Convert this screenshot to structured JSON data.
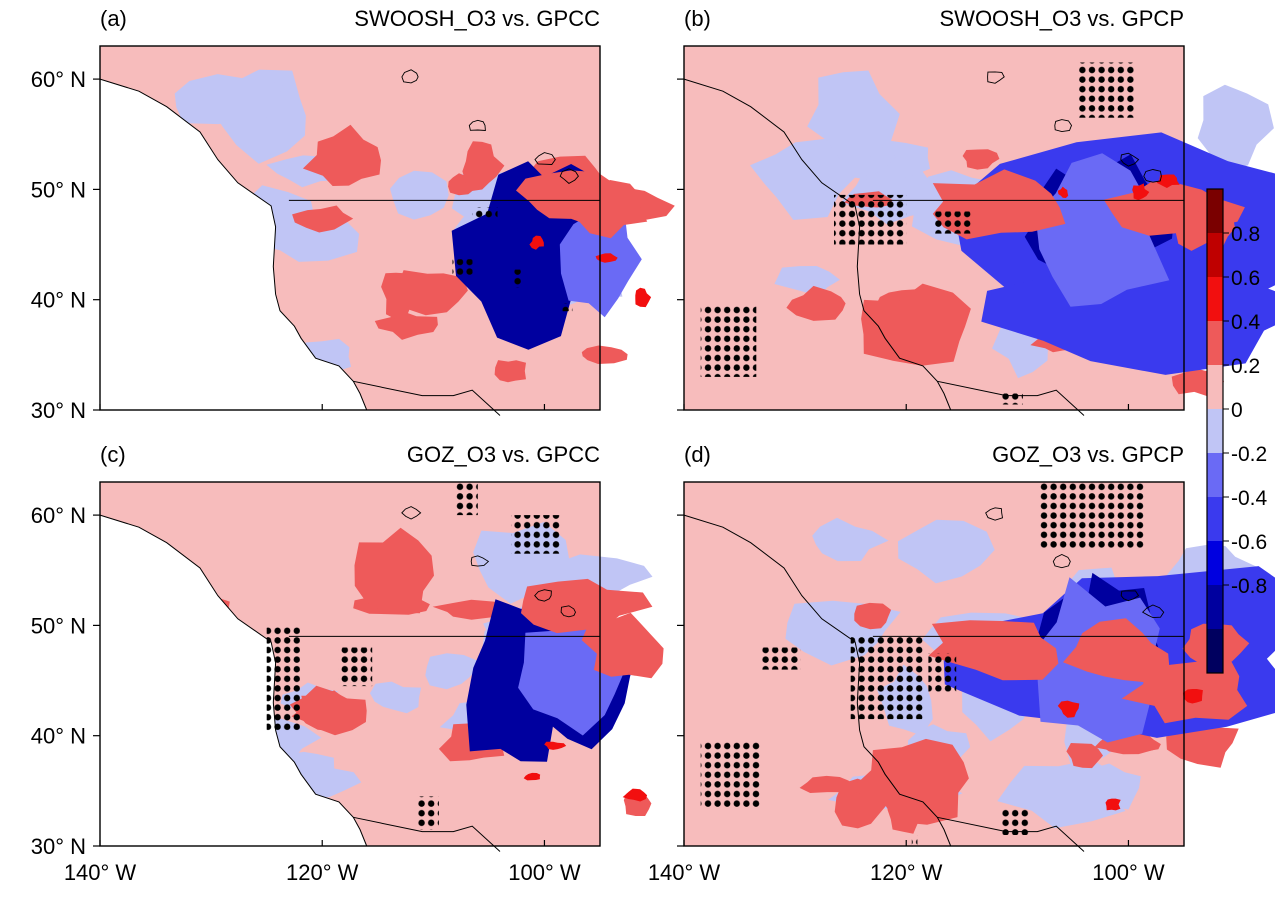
{
  "panels": [
    {
      "tag": "(a)",
      "title": "SWOOSH_O3 vs. GPCC",
      "show_lat_labels": true,
      "show_lon_labels": false,
      "seed": 11,
      "hotspots": [
        {
          "c": "d",
          "x": 44,
          "y": 40,
          "rx": 12,
          "ry": 16
        },
        {
          "c": "d",
          "x": 53,
          "y": 36,
          "rx": 9,
          "ry": 12
        },
        {
          "c": "d",
          "x": 60,
          "y": 43,
          "rx": 4,
          "ry": 2
        },
        {
          "c": "s",
          "x": 60,
          "y": 41,
          "rx": 7,
          "ry": 10
        },
        {
          "c": "r",
          "x": 9,
          "y": 22,
          "rx": 8,
          "ry": 6
        },
        {
          "c": "r",
          "x": 36,
          "y": 23,
          "rx": 4,
          "ry": 5
        },
        {
          "c": "r",
          "x": 53,
          "y": 29,
          "rx": 10,
          "ry": 5
        },
        {
          "c": "r",
          "x": 61,
          "y": 31,
          "rx": 8,
          "ry": 5
        }
      ],
      "stipple": [
        [
          42.5,
          44.5,
          46.5,
          43.0
        ],
        [
          52.5,
          54.5,
          49.5,
          51.0
        ],
        [
          30.5,
          34.5,
          41.0,
          44.0
        ],
        [
          34.5,
          39.5,
          31.0,
          33.0
        ]
      ]
    },
    {
      "tag": "(b)",
      "title": "SWOOSH_O3 vs. GPCP",
      "show_lat_labels": false,
      "show_lon_labels": false,
      "seed": 23,
      "hotspots": [
        {
          "c": "m",
          "x": 51,
          "y": 35,
          "rx": 36,
          "ry": 18
        },
        {
          "c": "m",
          "x": 52,
          "y": 50,
          "rx": 32,
          "ry": 12
        },
        {
          "c": "d",
          "x": 40,
          "y": 34,
          "rx": 8,
          "ry": 10
        },
        {
          "c": "d",
          "x": 48,
          "y": 32,
          "rx": 10,
          "ry": 10
        },
        {
          "c": "d",
          "x": 38,
          "y": 34,
          "rx": 9,
          "ry": 10
        },
        {
          "c": "d",
          "x": 41,
          "y": 36,
          "rx": 5,
          "ry": 6
        },
        {
          "c": "s",
          "x": 42,
          "y": 36,
          "rx": 14,
          "ry": 16
        },
        {
          "c": "r",
          "x": 6,
          "y": 54,
          "rx": 12,
          "ry": 7
        },
        {
          "c": "r",
          "x": 22,
          "y": 31,
          "rx": 14,
          "ry": 6
        },
        {
          "c": "r",
          "x": 58,
          "y": 31,
          "rx": 12,
          "ry": 5
        },
        {
          "c": "r",
          "x": 64,
          "y": 35,
          "rx": 6,
          "ry": 4
        }
      ],
      "stipple": [
        [
          -117.5,
          -114.0,
          46.0,
          48.0
        ],
        [
          -126.5,
          -120.0,
          45.0,
          49.5
        ],
        [
          -138.5,
          -133.5,
          33.0,
          39.5
        ],
        [
          -104.5,
          -99.5,
          56.5,
          61.5
        ],
        [
          -111.5,
          -109.5,
          30.5,
          31.5
        ]
      ]
    },
    {
      "tag": "(c)",
      "title": "GOZ_O3 vs. GPCC",
      "show_lat_labels": true,
      "show_lon_labels": true,
      "seed": 37,
      "hotspots": [
        {
          "c": "d",
          "x": 43,
          "y": 39,
          "rx": 10,
          "ry": 16
        },
        {
          "c": "d",
          "x": 57,
          "y": 37,
          "rx": 9,
          "ry": 12
        },
        {
          "c": "s",
          "x": 55,
          "y": 37,
          "rx": 11,
          "ry": 10
        },
        {
          "c": "r",
          "x": 19,
          "y": 18,
          "rx": 8,
          "ry": 8
        },
        {
          "c": "r",
          "x": 56,
          "y": 24,
          "rx": 12,
          "ry": 5
        },
        {
          "c": "r",
          "x": 65,
          "y": 32,
          "rx": 8,
          "ry": 6
        },
        {
          "c": "r",
          "x": 6,
          "y": 44,
          "rx": 7,
          "ry": 4
        }
      ],
      "stipple": [
        [
          -125.0,
          -122.0,
          40.5,
          50.0
        ],
        [
          -118.5,
          -115.5,
          44.5,
          48.0
        ],
        [
          -103.0,
          -98.5,
          56.5,
          60.0
        ],
        [
          -108.0,
          -106.0,
          60.0,
          63.0
        ],
        [
          -111.5,
          -109.5,
          31.5,
          34.5
        ]
      ]
    },
    {
      "tag": "(d)",
      "title": "GOZ_O3 vs. GPCP",
      "show_lat_labels": false,
      "show_lon_labels": true,
      "seed": 41,
      "hotspots": [
        {
          "c": "m",
          "x": 51,
          "y": 34,
          "rx": 35,
          "ry": 18
        },
        {
          "c": "d",
          "x": 40,
          "y": 33,
          "rx": 9,
          "ry": 10
        },
        {
          "c": "d",
          "x": 46,
          "y": 30,
          "rx": 10,
          "ry": 11
        },
        {
          "c": "s",
          "x": 43,
          "y": 35,
          "rx": 14,
          "ry": 15
        },
        {
          "c": "r",
          "x": 7,
          "y": 57,
          "rx": 12,
          "ry": 8
        },
        {
          "c": "r",
          "x": 22,
          "y": 32,
          "rx": 14,
          "ry": 6
        },
        {
          "c": "r",
          "x": 47,
          "y": 33,
          "rx": 10,
          "ry": 6
        },
        {
          "c": "r",
          "x": 61,
          "y": 40,
          "rx": 12,
          "ry": 6
        },
        {
          "c": "r",
          "x": 66,
          "y": 31,
          "rx": 6,
          "ry": 4
        }
      ],
      "stipple": [
        [
          -125.0,
          -118.5,
          41.5,
          49.0
        ],
        [
          -118.0,
          -115.5,
          44.0,
          47.5
        ],
        [
          -133.0,
          -129.5,
          46.0,
          48.0
        ],
        [
          -138.5,
          -133.0,
          33.5,
          39.5
        ],
        [
          -108.0,
          -98.5,
          57.0,
          63.0
        ],
        [
          -111.5,
          -109.0,
          31.0,
          33.5
        ],
        [
          -119.5,
          -119.0,
          30.0,
          31.0
        ]
      ]
    }
  ],
  "map_extent": {
    "lon_min": -140,
    "lon_max": -95,
    "lat_min": 30,
    "lat_max": 63
  },
  "lat_ticks": [
    {
      "value": 30,
      "label": "30° N"
    },
    {
      "value": 40,
      "label": "40° N"
    },
    {
      "value": 50,
      "label": "50° N"
    },
    {
      "value": 60,
      "label": "60° N"
    }
  ],
  "lon_ticks": [
    {
      "value": -140,
      "label": "140° W"
    },
    {
      "value": -120,
      "label": "120° W"
    },
    {
      "value": -100,
      "label": "100° W"
    }
  ],
  "colorbar": {
    "levels": [
      -0.8,
      -0.6,
      -0.4,
      -0.2,
      0,
      0.2,
      0.4,
      0.6,
      0.8
    ],
    "labels": [
      "-0.8",
      "-0.6",
      "-0.4",
      "-0.2",
      "0",
      "0.2",
      "0.4",
      "0.6",
      "0.8"
    ],
    "colors": [
      "#00005f",
      "#00009f",
      "#0000e0",
      "#3a3aee",
      "#6a6af5",
      "#c0c5f5",
      "#f7bcbc",
      "#ee5a5a",
      "#f20f0f",
      "#bf0000",
      "#7a0000"
    ]
  }
}
